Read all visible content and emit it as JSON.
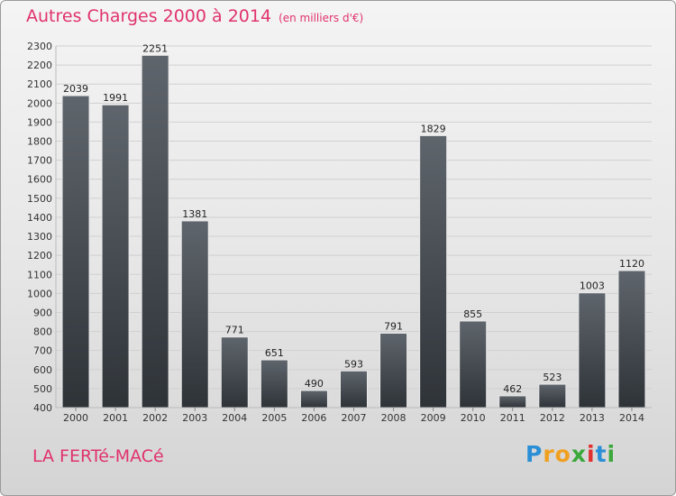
{
  "chart_data": {
    "type": "bar",
    "title": "Autres Charges 2000 à 2014",
    "subtitle": "(en milliers d'€)",
    "categories": [
      "2000",
      "2001",
      "2002",
      "2003",
      "2004",
      "2005",
      "2006",
      "2007",
      "2008",
      "2009",
      "2010",
      "2011",
      "2012",
      "2013",
      "2014"
    ],
    "values": [
      2039,
      1991,
      2251,
      1381,
      771,
      651,
      490,
      593,
      791,
      1829,
      855,
      462,
      523,
      1003,
      1120
    ],
    "ylim": [
      400,
      2300
    ],
    "ytick_step": 100,
    "grid": true,
    "xlabel": "",
    "ylabel": ""
  },
  "commune": "LA FERTé-MACé",
  "logo": {
    "letters": [
      "P",
      "r",
      "o",
      "x",
      "i",
      "t",
      "i"
    ],
    "colors": [
      "#2a8fd6",
      "#f0a020",
      "#f0a020",
      "#3aa83a",
      "#e03030",
      "#2a8fd6",
      "#3aa83a"
    ]
  },
  "colors": {
    "accent": "#e0326e",
    "bar_top": "#5f656c",
    "bar_bottom": "#2e3338"
  }
}
